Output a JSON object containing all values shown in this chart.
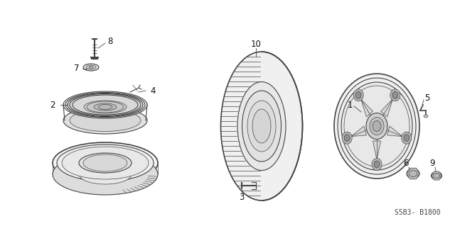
{
  "background_color": "#ffffff",
  "fig_width": 6.4,
  "fig_height": 3.19,
  "dpi": 100,
  "diagram_code": "S5B3- B1800",
  "line_color": "#444444",
  "label_color": "#111111",
  "label_fontsize": 8.5,
  "code_fontsize": 7,
  "code_color": "#444444"
}
